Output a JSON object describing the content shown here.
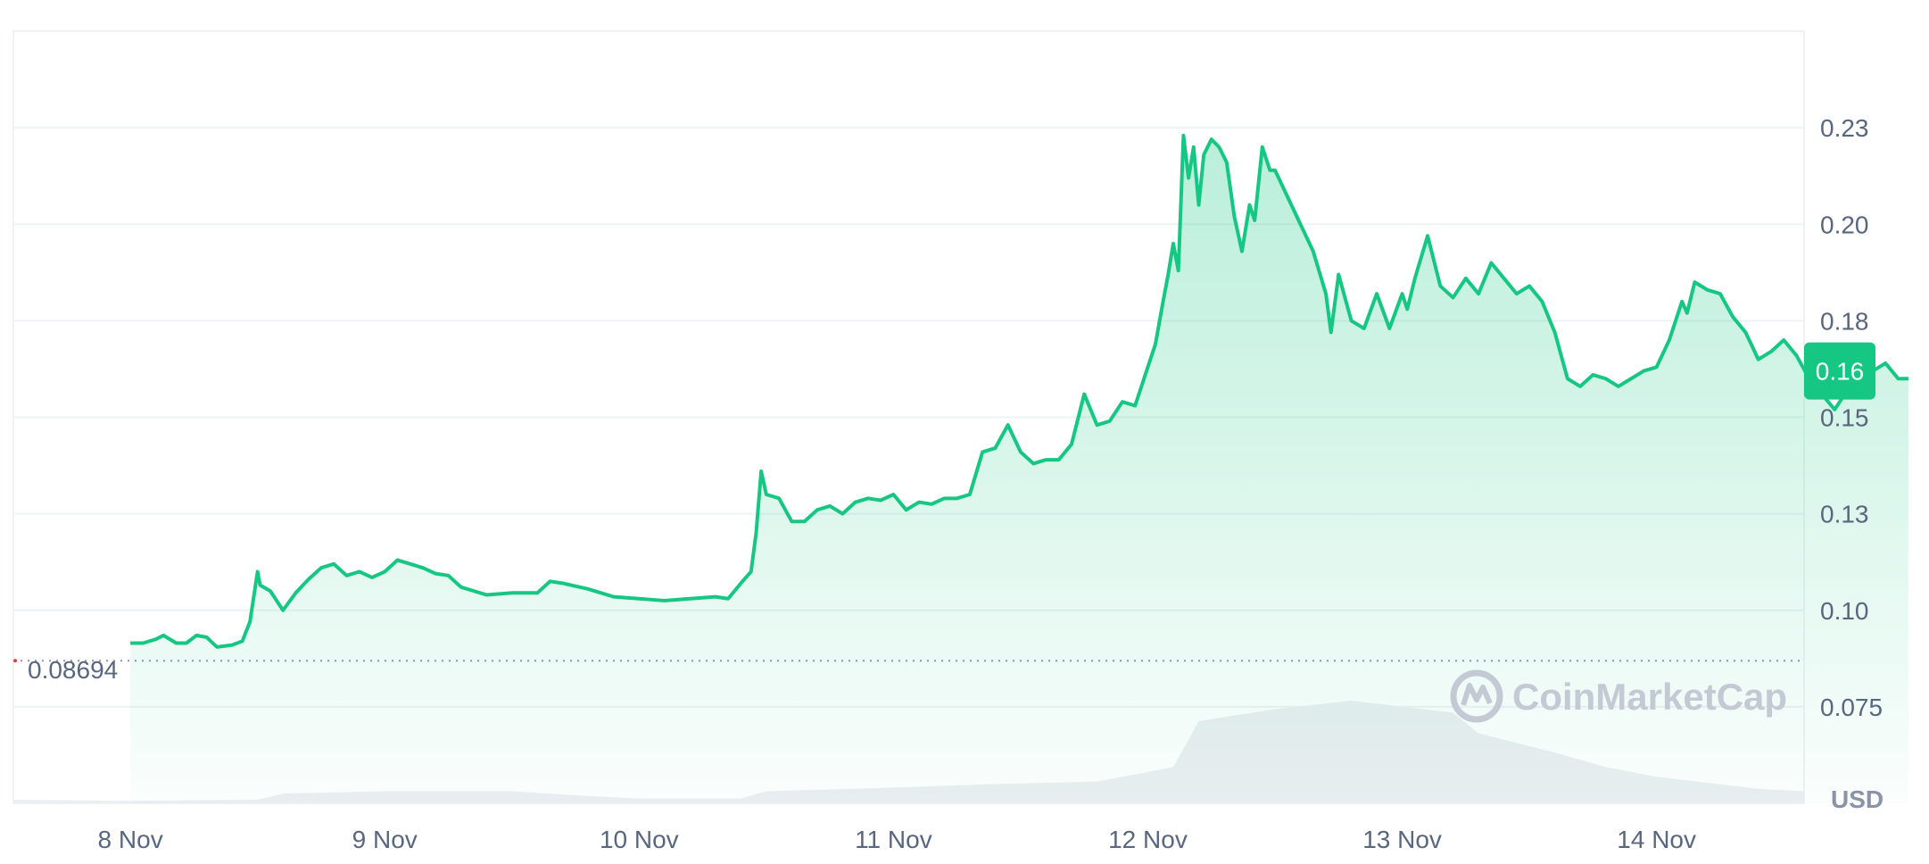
{
  "chart_data": {
    "type": "area",
    "x_labels": [
      "8 Nov",
      "9 Nov",
      "10 Nov",
      "11 Nov",
      "12 Nov",
      "13 Nov",
      "14 Nov"
    ],
    "x_range_days": [
      7.54,
      14.58
    ],
    "y_tick_labels": [
      "0.075",
      "0.10",
      "0.13",
      "0.15",
      "0.18",
      "0.20",
      "0.23"
    ],
    "y_tick_values": [
      0.075,
      0.1,
      0.125,
      0.15,
      0.175,
      0.2,
      0.225
    ],
    "ylim": [
      0.05,
      0.25
    ],
    "series": [
      {
        "color": "#16c784",
        "values": [
          [
            8.0,
            0.0915
          ],
          [
            8.05,
            0.0915
          ],
          [
            8.1,
            0.0925
          ],
          [
            8.13,
            0.0935
          ],
          [
            8.18,
            0.0915
          ],
          [
            8.22,
            0.0915
          ],
          [
            8.26,
            0.0935
          ],
          [
            8.3,
            0.093
          ],
          [
            8.34,
            0.0905
          ],
          [
            8.4,
            0.091
          ],
          [
            8.44,
            0.092
          ],
          [
            8.47,
            0.097
          ],
          [
            8.5,
            0.11
          ],
          [
            8.51,
            0.1065
          ],
          [
            8.55,
            0.105
          ],
          [
            8.6,
            0.1
          ],
          [
            8.65,
            0.1045
          ],
          [
            8.7,
            0.108
          ],
          [
            8.75,
            0.111
          ],
          [
            8.8,
            0.112
          ],
          [
            8.85,
            0.109
          ],
          [
            8.9,
            0.11
          ],
          [
            8.95,
            0.1085
          ],
          [
            9.0,
            0.11
          ],
          [
            9.05,
            0.113
          ],
          [
            9.1,
            0.112
          ],
          [
            9.15,
            0.111
          ],
          [
            9.2,
            0.1095
          ],
          [
            9.25,
            0.109
          ],
          [
            9.3,
            0.106
          ],
          [
            9.35,
            0.105
          ],
          [
            9.4,
            0.104
          ],
          [
            9.5,
            0.1045
          ],
          [
            9.6,
            0.1045
          ],
          [
            9.65,
            0.1075
          ],
          [
            9.7,
            0.107
          ],
          [
            9.8,
            0.1055
          ],
          [
            9.9,
            0.1035
          ],
          [
            10.0,
            0.103
          ],
          [
            10.1,
            0.1025
          ],
          [
            10.2,
            0.103
          ],
          [
            10.3,
            0.1035
          ],
          [
            10.35,
            0.103
          ],
          [
            10.4,
            0.107
          ],
          [
            10.44,
            0.11
          ],
          [
            10.46,
            0.12
          ],
          [
            10.48,
            0.136
          ],
          [
            10.5,
            0.13
          ],
          [
            10.55,
            0.129
          ],
          [
            10.6,
            0.123
          ],
          [
            10.65,
            0.123
          ],
          [
            10.7,
            0.126
          ],
          [
            10.75,
            0.127
          ],
          [
            10.8,
            0.125
          ],
          [
            10.85,
            0.128
          ],
          [
            10.9,
            0.129
          ],
          [
            10.95,
            0.1285
          ],
          [
            11.0,
            0.13
          ],
          [
            11.05,
            0.126
          ],
          [
            11.1,
            0.128
          ],
          [
            11.15,
            0.1275
          ],
          [
            11.2,
            0.129
          ],
          [
            11.25,
            0.129
          ],
          [
            11.3,
            0.13
          ],
          [
            11.35,
            0.141
          ],
          [
            11.4,
            0.142
          ],
          [
            11.45,
            0.148
          ],
          [
            11.5,
            0.141
          ],
          [
            11.55,
            0.138
          ],
          [
            11.6,
            0.139
          ],
          [
            11.65,
            0.139
          ],
          [
            11.7,
            0.143
          ],
          [
            11.75,
            0.156
          ],
          [
            11.8,
            0.148
          ],
          [
            11.85,
            0.149
          ],
          [
            11.9,
            0.154
          ],
          [
            11.95,
            0.153
          ],
          [
            12.0,
            0.163
          ],
          [
            12.03,
            0.169
          ],
          [
            12.06,
            0.18
          ],
          [
            12.08,
            0.187
          ],
          [
            12.1,
            0.195
          ],
          [
            12.12,
            0.188
          ],
          [
            12.14,
            0.223
          ],
          [
            12.16,
            0.212
          ],
          [
            12.18,
            0.22
          ],
          [
            12.2,
            0.205
          ],
          [
            12.22,
            0.218
          ],
          [
            12.25,
            0.222
          ],
          [
            12.28,
            0.22
          ],
          [
            12.31,
            0.216
          ],
          [
            12.34,
            0.202
          ],
          [
            12.37,
            0.193
          ],
          [
            12.4,
            0.205
          ],
          [
            12.42,
            0.201
          ],
          [
            12.45,
            0.22
          ],
          [
            12.48,
            0.214
          ],
          [
            12.5,
            0.214
          ],
          [
            12.55,
            0.207
          ],
          [
            12.6,
            0.2
          ],
          [
            12.65,
            0.193
          ],
          [
            12.7,
            0.182
          ],
          [
            12.72,
            0.172
          ],
          [
            12.75,
            0.187
          ],
          [
            12.8,
            0.175
          ],
          [
            12.85,
            0.173
          ],
          [
            12.9,
            0.182
          ],
          [
            12.95,
            0.173
          ],
          [
            13.0,
            0.182
          ],
          [
            13.02,
            0.178
          ],
          [
            13.05,
            0.186
          ],
          [
            13.1,
            0.197
          ],
          [
            13.15,
            0.184
          ],
          [
            13.2,
            0.181
          ],
          [
            13.25,
            0.186
          ],
          [
            13.3,
            0.182
          ],
          [
            13.35,
            0.19
          ],
          [
            13.4,
            0.186
          ],
          [
            13.45,
            0.182
          ],
          [
            13.5,
            0.184
          ],
          [
            13.55,
            0.18
          ],
          [
            13.6,
            0.172
          ],
          [
            13.65,
            0.16
          ],
          [
            13.7,
            0.158
          ],
          [
            13.75,
            0.161
          ],
          [
            13.8,
            0.16
          ],
          [
            13.85,
            0.158
          ],
          [
            13.9,
            0.16
          ],
          [
            13.95,
            0.162
          ],
          [
            14.0,
            0.163
          ],
          [
            14.05,
            0.17
          ],
          [
            14.1,
            0.18
          ],
          [
            14.12,
            0.177
          ],
          [
            14.15,
            0.185
          ],
          [
            14.2,
            0.183
          ],
          [
            14.25,
            0.182
          ],
          [
            14.3,
            0.176
          ],
          [
            14.35,
            0.172
          ],
          [
            14.4,
            0.165
          ],
          [
            14.45,
            0.167
          ],
          [
            14.5,
            0.17
          ],
          [
            14.55,
            0.166
          ],
          [
            14.6,
            0.16
          ],
          [
            14.65,
            0.156
          ],
          [
            14.7,
            0.152
          ],
          [
            14.75,
            0.157
          ],
          [
            14.8,
            0.16
          ],
          [
            14.85,
            0.162
          ],
          [
            14.9,
            0.164
          ],
          [
            14.95,
            0.16
          ],
          [
            14.99,
            0.16
          ]
        ]
      }
    ],
    "volume": [
      [
        7.54,
        0.003
      ],
      [
        8.0,
        0.002
      ],
      [
        8.5,
        0.003
      ],
      [
        8.6,
        0.008
      ],
      [
        9.0,
        0.01
      ],
      [
        9.5,
        0.01
      ],
      [
        9.8,
        0.006
      ],
      [
        10.0,
        0.004
      ],
      [
        10.4,
        0.004
      ],
      [
        10.5,
        0.01
      ],
      [
        11.0,
        0.013
      ],
      [
        11.4,
        0.016
      ],
      [
        11.8,
        0.018
      ],
      [
        12.1,
        0.03
      ],
      [
        12.2,
        0.068
      ],
      [
        12.5,
        0.078
      ],
      [
        12.8,
        0.085
      ],
      [
        13.0,
        0.08
      ],
      [
        13.2,
        0.075
      ],
      [
        13.3,
        0.058
      ],
      [
        13.6,
        0.042
      ],
      [
        13.8,
        0.03
      ],
      [
        14.0,
        0.022
      ],
      [
        14.4,
        0.012
      ],
      [
        14.58,
        0.01
      ]
    ],
    "reference_line": {
      "value": 0.08694,
      "label": "0.08694"
    },
    "current_price_label": "0.16",
    "current_price_value": 0.162,
    "unit_label": "USD",
    "grid": true,
    "line_color": "#16c784",
    "badge_color": "#16c784"
  },
  "watermark": {
    "text": "CoinMarketCap",
    "icon": "coinmarketcap-logo-icon"
  }
}
